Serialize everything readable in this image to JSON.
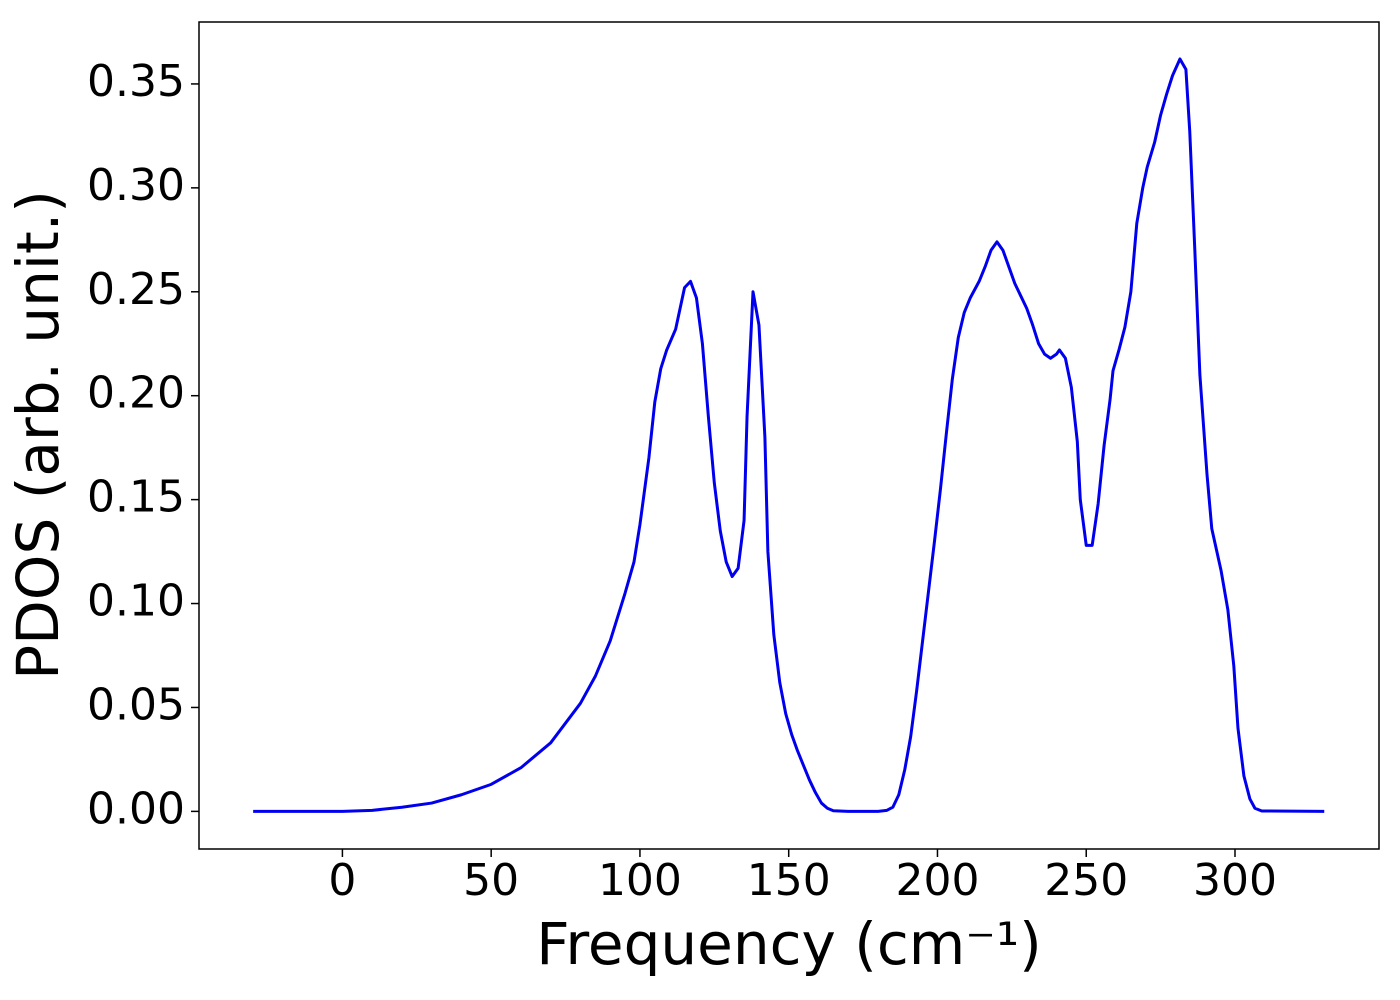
{
  "chart_data": {
    "type": "line",
    "xlabel": "Frequency (cm⁻¹)",
    "ylabel": "PDOS (arb. unit.)",
    "x": [
      -30,
      0,
      10,
      20,
      30,
      40,
      50,
      60,
      70,
      80,
      85,
      90,
      95,
      98,
      100,
      103,
      105,
      107,
      109,
      112,
      115,
      117,
      119,
      121,
      123,
      125,
      127,
      129,
      131,
      133,
      135,
      136,
      138,
      140,
      142,
      143,
      145,
      147,
      149,
      151,
      153,
      155,
      157,
      159,
      161,
      163,
      165,
      170,
      180,
      183,
      185,
      187,
      189,
      191,
      193,
      195,
      197,
      199,
      201,
      203,
      205,
      207,
      209,
      211,
      214,
      216,
      218,
      220,
      222,
      224,
      226,
      228,
      230,
      232,
      234,
      236,
      238,
      240,
      241,
      243,
      245,
      247,
      248,
      250,
      252,
      254,
      256,
      258,
      259,
      261,
      263,
      265,
      267,
      269,
      270.5,
      273,
      275,
      277,
      279,
      281.5,
      283.5,
      284.8,
      286.5,
      288.2,
      290.6,
      292.2,
      295.3,
      297.6,
      299.6,
      301,
      303,
      305,
      306.7,
      309,
      330
    ],
    "series": [
      {
        "name": "PDOS",
        "color": "#0000ee",
        "values": [
          0,
          0,
          0.0005,
          0.002,
          0.004,
          0.008,
          0.013,
          0.021,
          0.033,
          0.052,
          0.065,
          0.082,
          0.105,
          0.12,
          0.138,
          0.17,
          0.197,
          0.213,
          0.222,
          0.232,
          0.252,
          0.255,
          0.247,
          0.225,
          0.19,
          0.158,
          0.135,
          0.12,
          0.113,
          0.117,
          0.14,
          0.19,
          0.25,
          0.234,
          0.18,
          0.125,
          0.085,
          0.062,
          0.047,
          0.037,
          0.029,
          0.022,
          0.015,
          0.009,
          0.004,
          0.0015,
          0.0003,
          0,
          0,
          0.0005,
          0.002,
          0.008,
          0.02,
          0.036,
          0.058,
          0.082,
          0.106,
          0.13,
          0.155,
          0.182,
          0.208,
          0.228,
          0.24,
          0.247,
          0.255,
          0.262,
          0.27,
          0.274,
          0.27,
          0.262,
          0.254,
          0.248,
          0.242,
          0.234,
          0.225,
          0.22,
          0.218,
          0.22,
          0.222,
          0.218,
          0.204,
          0.178,
          0.15,
          0.128,
          0.128,
          0.148,
          0.176,
          0.198,
          0.212,
          0.222,
          0.233,
          0.25,
          0.283,
          0.3,
          0.31,
          0.322,
          0.335,
          0.345,
          0.354,
          0.362,
          0.357,
          0.327,
          0.27,
          0.21,
          0.162,
          0.136,
          0.116,
          0.097,
          0.07,
          0.04,
          0.017,
          0.006,
          0.0015,
          0.0002,
          0
        ]
      }
    ],
    "xlim": [
      -48.2,
      348.4
    ],
    "ylim": [
      -0.0181,
      0.3798
    ],
    "xticks": [
      0,
      50,
      100,
      150,
      200,
      250,
      300
    ],
    "yticks": [
      {
        "value": 0,
        "label": "0.00"
      },
      0.05,
      {
        "value": 0.1,
        "label": "0.10"
      },
      0.15,
      {
        "value": 0.2,
        "label": "0.20"
      },
      0.25,
      {
        "value": 0.3,
        "label": "0.30"
      },
      0.35
    ],
    "grid": false
  }
}
